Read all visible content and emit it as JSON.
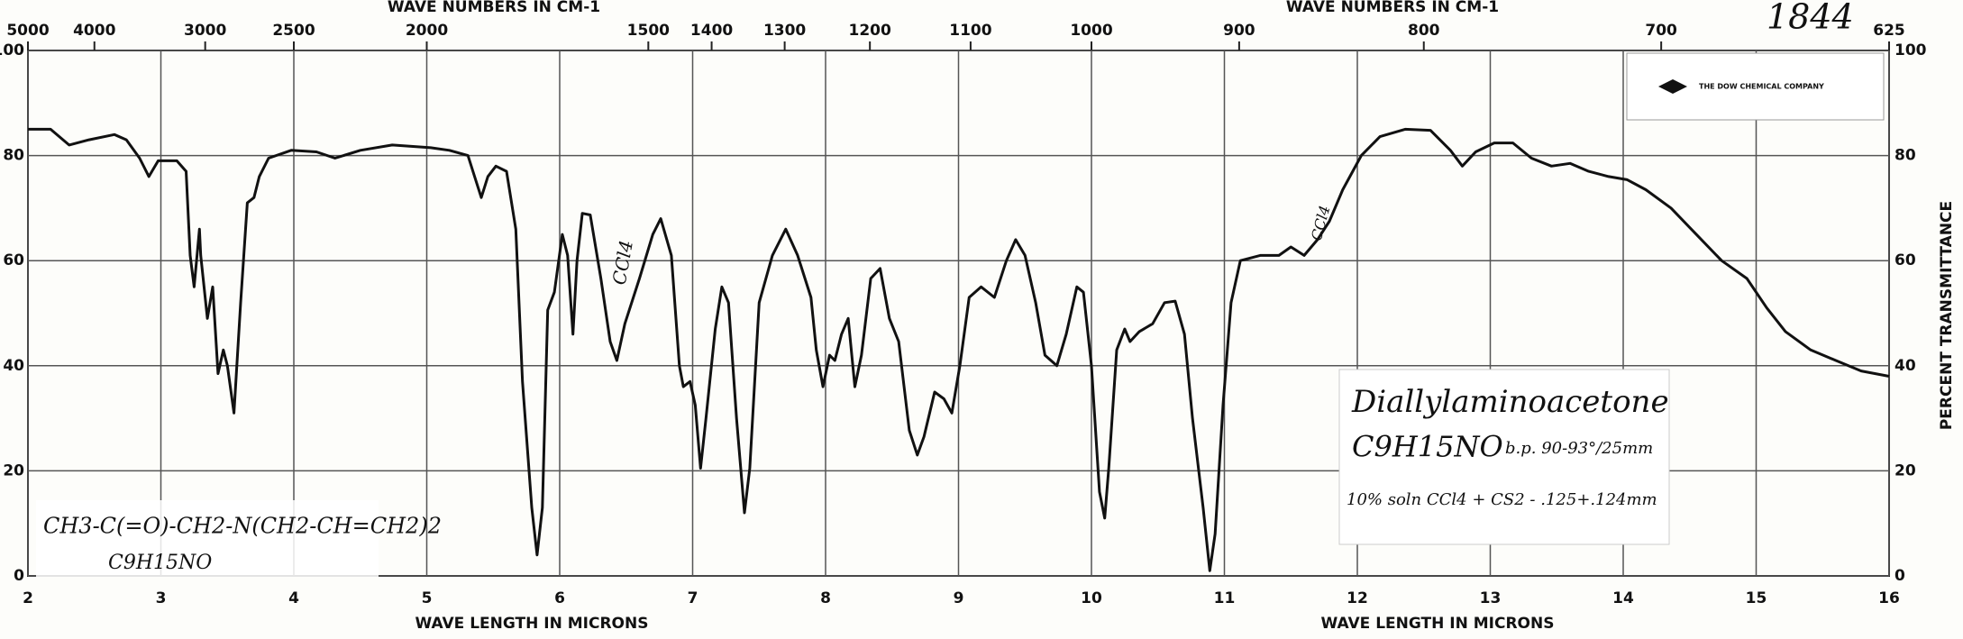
{
  "chart_data": {
    "type": "line",
    "xlabel": "WAVE LENGTH IN MICRONS",
    "ylabel": "PERCENT TRANSMITTANCE",
    "x2label": "WAVE NUMBERS IN CM-1",
    "xlim": [
      2,
      16
    ],
    "xticks": [
      2,
      3,
      4,
      5,
      6,
      7,
      8,
      9,
      10,
      11,
      12,
      13,
      14,
      15,
      16
    ],
    "x2ticks": [
      5000,
      4000,
      3000,
      2500,
      2000,
      1500,
      1400,
      1300,
      1200,
      1100,
      1000,
      900,
      800,
      700,
      625
    ],
    "ylim": [
      0,
      100
    ],
    "yticks": [
      0,
      20,
      40,
      60,
      80,
      100
    ],
    "grid": true,
    "color": "#111111",
    "x": [
      2.0,
      2.17,
      2.31,
      2.46,
      2.65,
      2.74,
      2.84,
      2.91,
      2.98,
      3.12,
      3.19,
      3.22,
      3.25,
      3.29,
      3.3,
      3.35,
      3.39,
      3.43,
      3.47,
      3.5,
      3.55,
      3.6,
      3.65,
      3.7,
      3.74,
      3.81,
      3.98,
      4.17,
      4.31,
      4.5,
      4.74,
      5.03,
      5.17,
      5.31,
      5.36,
      5.41,
      5.46,
      5.52,
      5.6,
      5.67,
      5.72,
      5.79,
      5.83,
      5.87,
      5.91,
      5.96,
      6.02,
      6.06,
      6.1,
      6.13,
      6.17,
      6.23,
      6.31,
      6.38,
      6.43,
      6.49,
      6.6,
      6.7,
      6.76,
      6.84,
      6.9,
      6.93,
      6.98,
      7.02,
      7.06,
      7.1,
      7.17,
      7.22,
      7.27,
      7.33,
      7.39,
      7.43,
      7.5,
      7.6,
      7.7,
      7.79,
      7.89,
      7.93,
      7.98,
      8.03,
      8.07,
      8.12,
      8.17,
      8.22,
      8.27,
      8.34,
      8.41,
      8.48,
      8.55,
      8.63,
      8.69,
      8.74,
      8.82,
      8.89,
      8.95,
      9.01,
      9.08,
      9.17,
      9.27,
      9.36,
      9.43,
      9.5,
      9.58,
      9.65,
      9.74,
      9.81,
      9.89,
      9.94,
      10.0,
      10.06,
      10.1,
      10.13,
      10.19,
      10.25,
      10.29,
      10.36,
      10.46,
      10.55,
      10.63,
      10.7,
      10.76,
      10.84,
      10.89,
      10.93,
      10.99,
      11.05,
      11.12,
      11.27,
      11.41,
      11.5,
      11.6,
      11.7,
      11.79,
      11.89,
      12.03,
      12.17,
      12.36,
      12.55,
      12.7,
      12.79,
      12.89,
      13.03,
      13.17,
      13.31,
      13.46,
      13.6,
      13.74,
      13.89,
      14.03,
      14.17,
      14.36,
      14.55,
      14.74,
      14.93,
      15.08,
      15.22,
      15.41,
      15.6,
      15.79,
      16.0
    ],
    "values": [
      85,
      85,
      82,
      83,
      84,
      83,
      79.5,
      76,
      79,
      79,
      77,
      61,
      55,
      66,
      61,
      49,
      55,
      38.5,
      43,
      40,
      31,
      52,
      71,
      72,
      76,
      79.5,
      81,
      80.7,
      79.5,
      81,
      82,
      81.5,
      81,
      80,
      76,
      72,
      76,
      78,
      77,
      66,
      37,
      13,
      4,
      13,
      50.6,
      54,
      65,
      61,
      46,
      60,
      69,
      68.7,
      56.6,
      44.6,
      41,
      48,
      56.6,
      65,
      68,
      61,
      40,
      36,
      37,
      32.5,
      20.5,
      30,
      47,
      55,
      52,
      30,
      12,
      20.5,
      52,
      61,
      66,
      61,
      53,
      43,
      36,
      42,
      41,
      46,
      49,
      36,
      42,
      56.6,
      58.5,
      49,
      44.6,
      27.7,
      23,
      26.5,
      35,
      33.7,
      31,
      40,
      53,
      55,
      53,
      60,
      64,
      61,
      52,
      42,
      40,
      46,
      55,
      54,
      40,
      16,
      11,
      20.5,
      43,
      47,
      44.6,
      46.5,
      48,
      52,
      52.3,
      46,
      30,
      13,
      1,
      8,
      32.5,
      52,
      60,
      61,
      61,
      62.6,
      61,
      64,
      67.5,
      73.5,
      80,
      83.6,
      85,
      84.8,
      81,
      78,
      80.7,
      82.4,
      82.4,
      79.5,
      78,
      78.5,
      77,
      76,
      75.4,
      73.5,
      70,
      65,
      60,
      56.6,
      51,
      46.5,
      43,
      41,
      39,
      38
    ],
    "annotations": [
      "1844",
      "THE DOW CHEMICAL COMPANY",
      "Diallylaminoacetone",
      "C9H15NO",
      "b.p. 90-93°/25mm",
      "10% soln CCl4 + CS2 - .125+.124mm",
      "CH3-C(=O)-CH2-N(CH2-CH=CH2)2",
      "C9H15NO",
      "CCl4",
      "CCl4"
    ]
  }
}
